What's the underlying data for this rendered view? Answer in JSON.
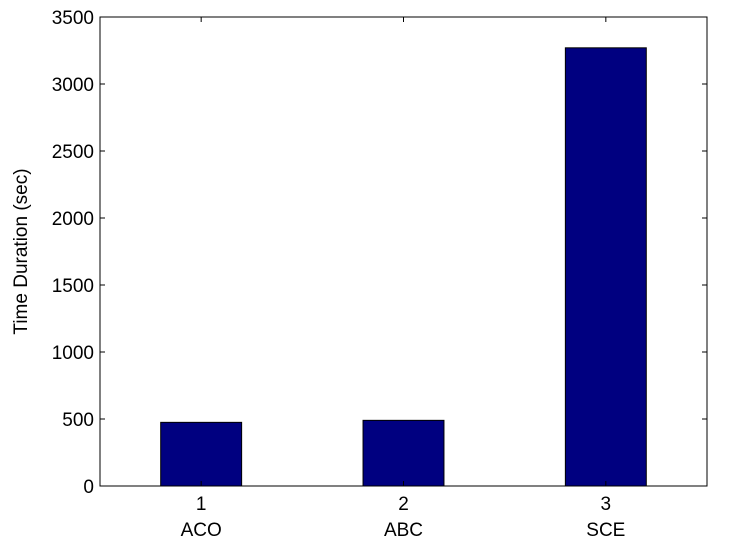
{
  "chart_data": {
    "type": "bar",
    "categories": [
      "1",
      "2",
      "3"
    ],
    "category_names": [
      "ACO",
      "ABC",
      "SCE"
    ],
    "values": [
      475,
      490,
      3270
    ],
    "xlabel": "",
    "ylabel": "Time Duration (sec)",
    "ylim": [
      0,
      3500
    ],
    "yticks": [
      0,
      500,
      1000,
      1500,
      2000,
      2500,
      3000,
      3500
    ],
    "grid": false,
    "bar_color": "#000080"
  }
}
